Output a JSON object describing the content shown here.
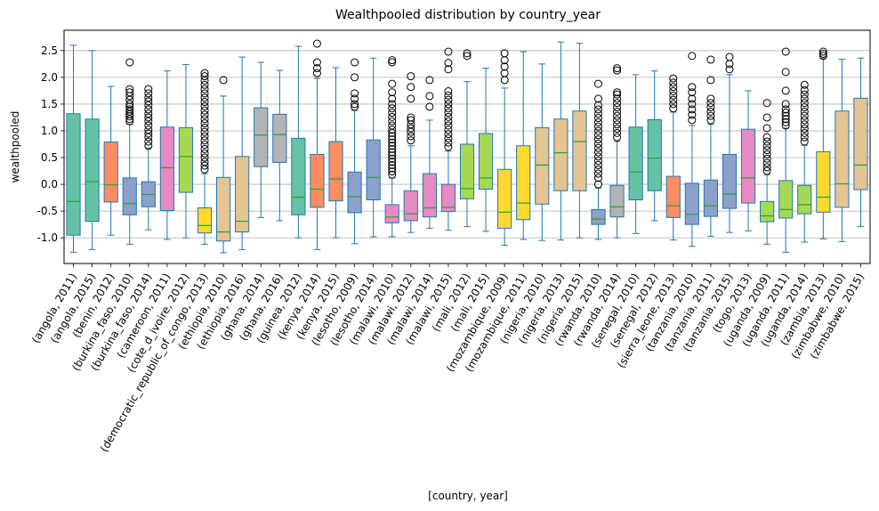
{
  "chart_data": {
    "type": "box",
    "title": "Wealthpooled distribution by country_year",
    "xlabel": "[country, year]",
    "ylabel": "wealthpooled",
    "ylim": [
      -1.48,
      2.88
    ],
    "yticks": [
      "-1.0",
      "-0.5",
      "0.0",
      "0.5",
      "1.0",
      "1.5",
      "2.0",
      "2.5"
    ],
    "ytick_values": [
      -1.0,
      -0.5,
      0.0,
      0.5,
      1.0,
      1.5,
      2.0,
      2.5
    ],
    "grid": "horizontal",
    "categories": [
      "(angola, 2011)",
      "(angola, 2015)",
      "(benin, 2012)",
      "(burkina_faso, 2010)",
      "(burkina_faso, 2014)",
      "(cameroon, 2011)",
      "(cote_d_ivoire, 2012)",
      "(democratic_republic_of_congo, 2013)",
      "(ethiopia, 2010)",
      "(ethiopia, 2016)",
      "(ghana, 2014)",
      "(ghana, 2016)",
      "(guinea, 2012)",
      "(kenya, 2014)",
      "(kenya, 2015)",
      "(lesotho, 2009)",
      "(lesotho, 2014)",
      "(malawi, 2010)",
      "(malawi, 2012)",
      "(malawi, 2014)",
      "(malawi, 2015)",
      "(mali, 2012)",
      "(mali, 2015)",
      "(mozambique, 2009)",
      "(mozambique, 2011)",
      "(nigeria, 2010)",
      "(nigeria, 2013)",
      "(nigeria, 2015)",
      "(rwanda, 2010)",
      "(rwanda, 2014)",
      "(senegal, 2010)",
      "(senegal, 2012)",
      "(sierra_leone, 2013)",
      "(tanzania, 2010)",
      "(tanzania, 2011)",
      "(tanzania, 2015)",
      "(togo, 2013)",
      "(uganda, 2009)",
      "(uganda, 2011)",
      "(uganda, 2014)",
      "(zambia, 2013)",
      "(zimbabwe, 2010)",
      "(zimbabwe, 2015)"
    ],
    "boxes": [
      {
        "whislo": -1.27,
        "q1": -0.95,
        "med": -0.32,
        "q3": 1.32,
        "whishi": 2.6,
        "fliers": [],
        "color": "#66c2a5"
      },
      {
        "whislo": -1.22,
        "q1": -0.69,
        "med": 0.05,
        "q3": 1.22,
        "whishi": 2.5,
        "fliers": [],
        "color": "#66c2a5"
      },
      {
        "whislo": -0.95,
        "q1": -0.33,
        "med": -0.01,
        "q3": 0.79,
        "whishi": 1.83,
        "fliers": [],
        "color": "#fc8d62"
      },
      {
        "whislo": -1.12,
        "q1": -0.57,
        "med": -0.36,
        "q3": 0.12,
        "whishi": 1.12,
        "fliers": [
          1.18,
          1.22,
          1.27,
          1.31,
          1.36,
          1.4,
          1.45,
          1.5,
          1.58,
          1.65,
          1.72,
          1.78,
          2.28
        ],
        "color": "#8da0cb"
      },
      {
        "whislo": -0.85,
        "q1": -0.42,
        "med": -0.19,
        "q3": 0.05,
        "whishi": 0.68,
        "fliers": [
          0.72,
          0.8,
          0.88,
          0.95,
          1.02,
          1.1,
          1.18,
          1.25,
          1.32,
          1.4,
          1.48,
          1.55,
          1.62,
          1.7,
          1.78
        ],
        "color": "#8da0cb"
      },
      {
        "whislo": -1.03,
        "q1": -0.49,
        "med": 0.31,
        "q3": 1.07,
        "whishi": 2.12,
        "fliers": [],
        "color": "#e78ac3"
      },
      {
        "whislo": -1.0,
        "q1": -0.15,
        "med": 0.52,
        "q3": 1.06,
        "whishi": 2.24,
        "fliers": [],
        "color": "#a6d854"
      },
      {
        "whislo": -1.12,
        "q1": -0.91,
        "med": -0.77,
        "q3": -0.44,
        "whishi": 0.2,
        "fliers": [
          0.28,
          0.35,
          0.42,
          0.5,
          0.58,
          0.66,
          0.74,
          0.82,
          0.9,
          0.98,
          1.06,
          1.14,
          1.22,
          1.3,
          1.38,
          1.46,
          1.54,
          1.62,
          1.7,
          1.78,
          1.86,
          1.94,
          2.02,
          2.08
        ],
        "color": "#ffd92f"
      },
      {
        "whislo": -1.28,
        "q1": -1.06,
        "med": -0.89,
        "q3": 0.13,
        "whishi": 1.65,
        "fliers": [
          1.95
        ],
        "color": "#e5c494"
      },
      {
        "whislo": -1.22,
        "q1": -0.89,
        "med": -0.69,
        "q3": 0.52,
        "whishi": 2.38,
        "fliers": [],
        "color": "#e5c494"
      },
      {
        "whislo": -0.62,
        "q1": 0.33,
        "med": 0.92,
        "q3": 1.43,
        "whishi": 2.28,
        "fliers": [],
        "color": "#b3b3b3"
      },
      {
        "whislo": -0.68,
        "q1": 0.41,
        "med": 0.93,
        "q3": 1.31,
        "whishi": 2.13,
        "fliers": [],
        "color": "#b3b3b3"
      },
      {
        "whislo": -1.0,
        "q1": -0.57,
        "med": -0.24,
        "q3": 0.86,
        "whishi": 2.58,
        "fliers": [],
        "color": "#66c2a5"
      },
      {
        "whislo": -1.22,
        "q1": -0.43,
        "med": -0.09,
        "q3": 0.56,
        "whishi": 1.98,
        "fliers": [
          2.08,
          2.17,
          2.28,
          2.63
        ],
        "color": "#fc8d62"
      },
      {
        "whislo": -1.0,
        "q1": -0.31,
        "med": 0.1,
        "q3": 0.8,
        "whishi": 2.18,
        "fliers": [],
        "color": "#fc8d62"
      },
      {
        "whislo": -1.11,
        "q1": -0.53,
        "med": -0.23,
        "q3": 0.23,
        "whishi": 1.38,
        "fliers": [
          1.45,
          1.5,
          1.6,
          1.7,
          2.0,
          2.28
        ],
        "color": "#8da0cb"
      },
      {
        "whislo": -0.98,
        "q1": -0.29,
        "med": 0.13,
        "q3": 0.83,
        "whishi": 2.36,
        "fliers": [],
        "color": "#8da0cb"
      },
      {
        "whislo": -0.98,
        "q1": -0.72,
        "med": -0.61,
        "q3": -0.38,
        "whishi": 0.12,
        "fliers": [
          0.18,
          0.24,
          0.3,
          0.36,
          0.42,
          0.48,
          0.54,
          0.6,
          0.66,
          0.72,
          0.78,
          0.84,
          0.9,
          0.96,
          1.02,
          1.1,
          1.18,
          1.26,
          1.34,
          1.42,
          1.5,
          1.6,
          1.72,
          1.88,
          2.28,
          2.32
        ],
        "color": "#e78ac3"
      },
      {
        "whislo": -0.9,
        "q1": -0.68,
        "med": -0.55,
        "q3": -0.12,
        "whishi": 0.72,
        "fliers": [
          0.82,
          0.9,
          0.98,
          1.05,
          1.12,
          1.2,
          1.25,
          1.6,
          1.82,
          2.02
        ],
        "color": "#e78ac3"
      },
      {
        "whislo": -0.82,
        "q1": -0.61,
        "med": -0.44,
        "q3": 0.2,
        "whishi": 1.2,
        "fliers": [
          1.45,
          1.65,
          1.95
        ],
        "color": "#e78ac3"
      },
      {
        "whislo": -0.86,
        "q1": -0.51,
        "med": -0.43,
        "q3": 0.0,
        "whishi": 0.62,
        "fliers": [
          0.7,
          0.78,
          0.86,
          0.94,
          1.02,
          1.1,
          1.18,
          1.26,
          1.34,
          1.42,
          1.5,
          1.58,
          1.66,
          1.74,
          2.15,
          2.27,
          2.48
        ],
        "color": "#e78ac3"
      },
      {
        "whislo": -0.79,
        "q1": -0.27,
        "med": -0.08,
        "q3": 0.75,
        "whishi": 1.92,
        "fliers": [
          2.4,
          2.45
        ],
        "color": "#a6d854"
      },
      {
        "whislo": -0.88,
        "q1": -0.09,
        "med": 0.12,
        "q3": 0.95,
        "whishi": 2.17,
        "fliers": [],
        "color": "#a6d854"
      },
      {
        "whislo": -1.14,
        "q1": -0.82,
        "med": -0.52,
        "q3": 0.28,
        "whishi": 1.8,
        "fliers": [
          1.95,
          2.08,
          2.2,
          2.32,
          2.45
        ],
        "color": "#ffd92f"
      },
      {
        "whislo": -1.03,
        "q1": -0.66,
        "med": -0.35,
        "q3": 0.72,
        "whishi": 2.48,
        "fliers": [],
        "color": "#ffd92f"
      },
      {
        "whislo": -1.05,
        "q1": -0.37,
        "med": 0.36,
        "q3": 1.06,
        "whishi": 2.25,
        "fliers": [],
        "color": "#e5c494"
      },
      {
        "whislo": -1.04,
        "q1": -0.12,
        "med": 0.59,
        "q3": 1.22,
        "whishi": 2.66,
        "fliers": [],
        "color": "#e5c494"
      },
      {
        "whislo": -1.0,
        "q1": -0.12,
        "med": 0.8,
        "q3": 1.37,
        "whishi": 2.64,
        "fliers": [],
        "color": "#e5c494"
      },
      {
        "whislo": -1.03,
        "q1": -0.75,
        "med": -0.65,
        "q3": -0.47,
        "whishi": -0.07,
        "fliers": [
          0.0,
          0.12,
          0.2,
          0.28,
          0.36,
          0.44,
          0.52,
          0.6,
          0.68,
          0.76,
          0.84,
          0.92,
          1.0,
          1.08,
          1.16,
          1.24,
          1.32,
          1.4,
          1.48,
          1.6,
          1.88
        ],
        "color": "#8da0cb"
      },
      {
        "whislo": -1.0,
        "q1": -0.61,
        "med": -0.42,
        "q3": -0.02,
        "whishi": 0.8,
        "fliers": [
          0.88,
          0.96,
          1.04,
          1.12,
          1.2,
          1.28,
          1.36,
          1.44,
          1.52,
          1.6,
          1.68,
          1.72,
          2.13,
          2.17
        ],
        "color": "#b3b3b3"
      },
      {
        "whislo": -0.92,
        "q1": -0.29,
        "med": 0.23,
        "q3": 1.07,
        "whishi": 2.05,
        "fliers": [],
        "color": "#66c2a5"
      },
      {
        "whislo": -0.68,
        "q1": -0.12,
        "med": 0.49,
        "q3": 1.21,
        "whishi": 2.12,
        "fliers": [],
        "color": "#66c2a5"
      },
      {
        "whislo": -1.04,
        "q1": -0.62,
        "med": -0.4,
        "q3": 0.15,
        "whishi": 1.35,
        "fliers": [
          1.42,
          1.5,
          1.58,
          1.66,
          1.74,
          1.82,
          1.9,
          1.98
        ],
        "color": "#fc8d62"
      },
      {
        "whislo": -1.16,
        "q1": -0.75,
        "med": -0.56,
        "q3": 0.02,
        "whishi": 1.1,
        "fliers": [
          1.2,
          1.3,
          1.4,
          1.5,
          1.6,
          1.72,
          1.82,
          2.4
        ],
        "color": "#8da0cb"
      },
      {
        "whislo": -0.97,
        "q1": -0.6,
        "med": -0.4,
        "q3": 0.08,
        "whishi": 1.12,
        "fliers": [
          1.2,
          1.28,
          1.36,
          1.44,
          1.52,
          1.6,
          1.95,
          2.33
        ],
        "color": "#8da0cb"
      },
      {
        "whislo": -0.9,
        "q1": -0.45,
        "med": -0.18,
        "q3": 0.56,
        "whishi": 2.05,
        "fliers": [
          2.15,
          2.25,
          2.38
        ],
        "color": "#8da0cb"
      },
      {
        "whislo": -0.87,
        "q1": -0.35,
        "med": 0.12,
        "q3": 1.03,
        "whishi": 1.75,
        "fliers": [],
        "color": "#e78ac3"
      },
      {
        "whislo": -1.12,
        "q1": -0.7,
        "med": -0.59,
        "q3": -0.32,
        "whishi": 0.18,
        "fliers": [
          0.25,
          0.32,
          0.4,
          0.48,
          0.56,
          0.64,
          0.72,
          0.8,
          0.88,
          1.05,
          1.25,
          1.52
        ],
        "color": "#a6d854"
      },
      {
        "whislo": -1.27,
        "q1": -0.63,
        "med": -0.47,
        "q3": 0.07,
        "whishi": 1.05,
        "fliers": [
          1.1,
          1.16,
          1.22,
          1.28,
          1.34,
          1.4,
          1.5,
          1.75,
          2.1,
          2.48
        ],
        "color": "#a6d854"
      },
      {
        "whislo": -1.08,
        "q1": -0.55,
        "med": -0.38,
        "q3": -0.02,
        "whishi": 0.73,
        "fliers": [
          0.8,
          0.88,
          0.96,
          1.04,
          1.12,
          1.2,
          1.28,
          1.36,
          1.44,
          1.52,
          1.6,
          1.68,
          1.76,
          1.86
        ],
        "color": "#a6d854"
      },
      {
        "whislo": -1.02,
        "q1": -0.52,
        "med": -0.24,
        "q3": 0.61,
        "whishi": 2.36,
        "fliers": [
          2.4,
          2.44,
          2.48
        ],
        "color": "#ffd92f"
      },
      {
        "whislo": -1.07,
        "q1": -0.43,
        "med": 0.01,
        "q3": 1.37,
        "whishi": 2.34,
        "fliers": [],
        "color": "#e5c494"
      },
      {
        "whislo": -0.79,
        "q1": -0.1,
        "med": 0.36,
        "q3": 1.61,
        "whishi": 2.36,
        "fliers": [],
        "color": "#e5c494"
      }
    ]
  }
}
